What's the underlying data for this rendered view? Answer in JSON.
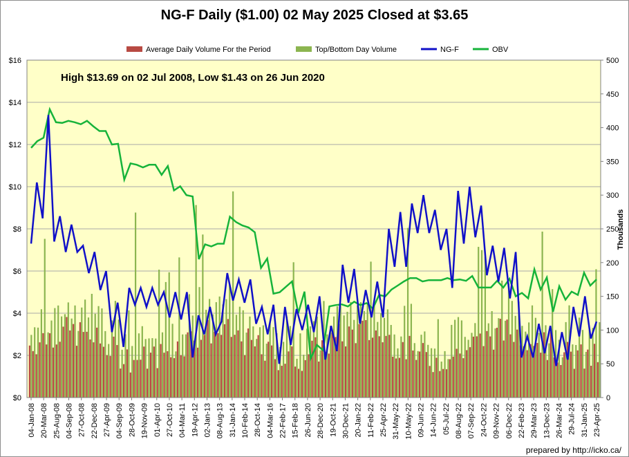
{
  "chart_data": {
    "type": "bar",
    "title": "NG-F Daily ($1.00)  02 May 2025 Closed at $3.65",
    "annotation": "High $13.69 on 02 Jul 2008, Low $1.43 on 26 Jun 2020",
    "credit": "prepared by http://icko.ca/",
    "legend": [
      {
        "name": "Average Daily Volume For the Period",
        "color": "#b84a43",
        "kind": "bar"
      },
      {
        "name": "Top/Bottom Day Volume",
        "color": "#8cb550",
        "kind": "bar"
      },
      {
        "name": "NG-F",
        "color": "#1010c8",
        "kind": "line"
      },
      {
        "name": "OBV",
        "color": "#16b33a",
        "kind": "line"
      }
    ],
    "legend_position": "top",
    "plot_background": "#ffffc8",
    "grid": true,
    "y_left": {
      "label": "",
      "ylim": [
        0,
        16
      ],
      "ticks": [
        "$0",
        "$2",
        "$4",
        "$6",
        "$8",
        "$10",
        "$12",
        "$14",
        "$16"
      ]
    },
    "y_right": {
      "label": "Thousands",
      "ylim": [
        0,
        500
      ],
      "ticks": [
        "0",
        "50",
        "100",
        "150",
        "200",
        "250",
        "300",
        "350",
        "400",
        "450",
        "500"
      ]
    },
    "x_ticks": [
      "04-Jan-08",
      "20-Mar-08",
      "25-Aug-08",
      "04-Sep-08",
      "27-Oct-08",
      "22-Dec-08",
      "27-Apr-09",
      "04-Sep-09",
      "28-Oct-09",
      "19-Nov-09",
      "01-Apr-10",
      "27-Oct-10",
      "04-Mar-11",
      "19-Apr-12",
      "02-Jan-13",
      "08-Aug-13",
      "31-Jan-14",
      "10-Feb-14",
      "28-Oct-14",
      "04-Mar-16",
      "22-Feb-17",
      "15-Feb-18",
      "26-Jun-20",
      "28-Dec-20",
      "19-Oct-21",
      "30-Dec-21",
      "20-Jan-22",
      "11-Feb-22",
      "25-Apr-22",
      "31-May-22",
      "10-May-22",
      "09-Jun-22",
      "14-Jun-22",
      "05-Jul-22",
      "08-Aug-22",
      "07-Sep-22",
      "24-Oct-22",
      "09-Nov-22",
      "06-Dec-22",
      "22-Feb-23",
      "29-Mar-23",
      "13-Dec-23",
      "26-Mar-24",
      "29-Jul-24",
      "31-Jan-25",
      "23-Apr-25"
    ],
    "ng_f": [
      7.3,
      10.2,
      8.5,
      13.4,
      7.4,
      8.6,
      6.9,
      8.2,
      6.9,
      7.2,
      5.9,
      6.9,
      5.1,
      6.0,
      3.1,
      4.5,
      2.4,
      5.2,
      4.4,
      5.2,
      4.3,
      5.2,
      4.4,
      5.0,
      3.8,
      5.0,
      3.7,
      5.0,
      1.9,
      3.9,
      3.0,
      4.3,
      3.0,
      3.6,
      5.9,
      4.6,
      5.6,
      4.5,
      5.6,
      3.5,
      4.3,
      3.0,
      4.4,
      1.6,
      4.3,
      2.5,
      4.2,
      3.2,
      4.4,
      3.1,
      4.8,
      1.8,
      3.4,
      2.2,
      6.3,
      4.5,
      6.1,
      3.5,
      5.1,
      3.8,
      5.5,
      3.8,
      8.0,
      6.2,
      8.8,
      6.2,
      9.2,
      7.8,
      9.6,
      7.8,
      8.9,
      7.0,
      8.0,
      5.2,
      9.8,
      7.3,
      10.0,
      7.6,
      9.1,
      5.8,
      7.2,
      5.5,
      7.1,
      4.7,
      6.9,
      1.9,
      2.9,
      1.9,
      3.5,
      2.1,
      3.4,
      1.5,
      3.1,
      1.8,
      4.3,
      2.9,
      4.8,
      2.8,
      3.6
    ],
    "obv": [
      370,
      380,
      385,
      427,
      408,
      407,
      410,
      408,
      405,
      410,
      402,
      395,
      395,
      375,
      376,
      323,
      347,
      345,
      341,
      345,
      345,
      330,
      343,
      307,
      313,
      300,
      298,
      205,
      227,
      224,
      228,
      228,
      268,
      260,
      255,
      252,
      245,
      192,
      206,
      154,
      156,
      164,
      172,
      125,
      157,
      58,
      78,
      70,
      135,
      137,
      138,
      135,
      142,
      137,
      140,
      132,
      152,
      150,
      160,
      166,
      172,
      177,
      177,
      172,
      174,
      174,
      174,
      177,
      174,
      175,
      173,
      180,
      163,
      163,
      163,
      173,
      163,
      176,
      150,
      155,
      147,
      190,
      160,
      178,
      127,
      165,
      145,
      157,
      152,
      185,
      166,
      175
    ]
  }
}
